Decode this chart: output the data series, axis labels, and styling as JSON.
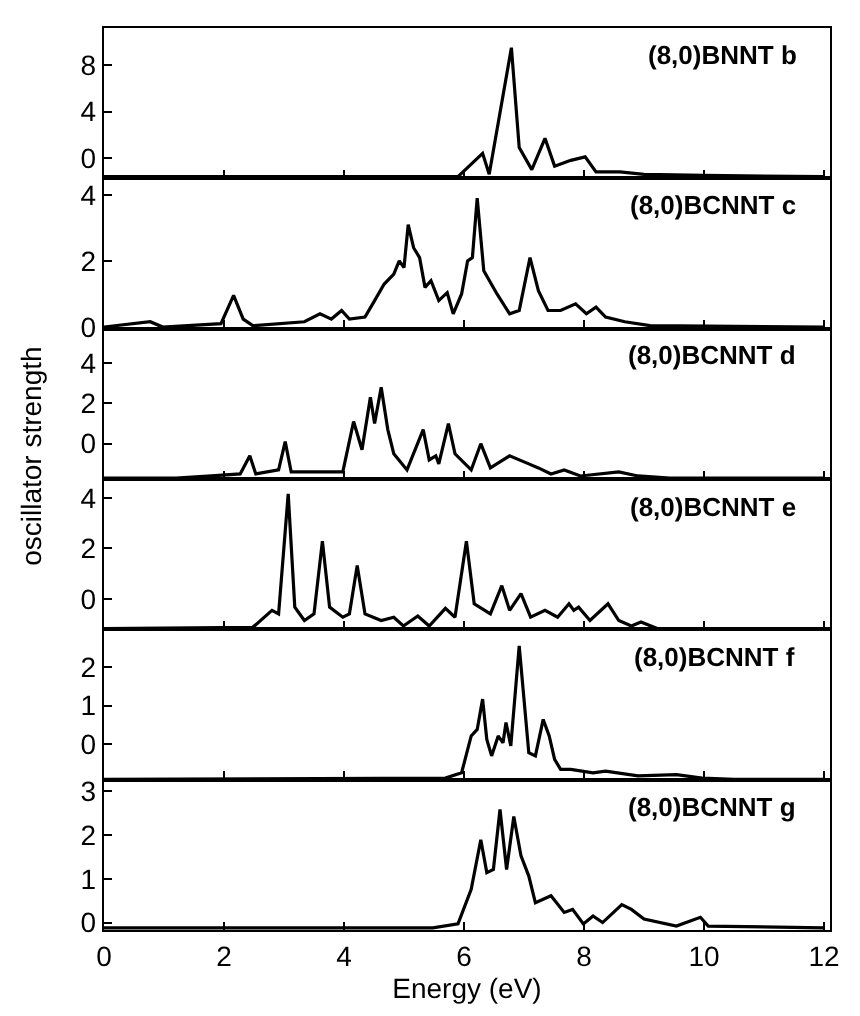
{
  "chart_data": [
    {
      "type": "line",
      "title": "(8,0)BNNT b",
      "tick_labels": "y",
      "grid": false,
      "xlim": [
        0,
        12.1
      ],
      "xticks": [
        0,
        2,
        4,
        6,
        8,
        10,
        12
      ],
      "ylim": [
        -1.75,
        11.2
      ],
      "yticks": [
        0,
        4,
        8
      ],
      "x": [
        0,
        5.9,
        6.31,
        6.42,
        6.79,
        6.92,
        7.13,
        7.35,
        7.51,
        7.78,
        8.02,
        8.2,
        8.6,
        9.0,
        10.0,
        12
      ],
      "series": [
        {
          "color": "#000000",
          "values": [
            -1.6,
            -1.6,
            0.4,
            -1.4,
            9.5,
            0.9,
            -1.0,
            1.7,
            -0.7,
            -0.2,
            0.1,
            -1.2,
            -1.2,
            -1.4,
            -1.5,
            -1.6
          ]
        }
      ]
    },
    {
      "type": "line",
      "title": "(8,0)BCNNT c",
      "tick_labels": "y",
      "grid": false,
      "xlim": [
        0,
        12.1
      ],
      "xticks": [
        0,
        2,
        4,
        6,
        8,
        10,
        12
      ],
      "ylim": [
        -0.05,
        4.5
      ],
      "yticks": [
        0,
        2,
        4
      ],
      "x": [
        0,
        0.77,
        0.98,
        1.95,
        2.16,
        2.32,
        2.48,
        3.34,
        3.6,
        3.79,
        3.96,
        4.09,
        4.35,
        4.51,
        4.67,
        4.83,
        4.92,
        5.0,
        5.07,
        5.16,
        5.26,
        5.35,
        5.45,
        5.58,
        5.72,
        5.82,
        5.96,
        6.06,
        6.14,
        6.22,
        6.33,
        6.55,
        6.76,
        6.92,
        7.1,
        7.24,
        7.4,
        7.61,
        7.86,
        8.04,
        8.2,
        8.36,
        8.68,
        9.1,
        12
      ],
      "series": [
        {
          "color": "#000000",
          "values": [
            0,
            0.16,
            0,
            0.1,
            0.96,
            0.24,
            0.04,
            0.16,
            0.4,
            0.24,
            0.5,
            0.24,
            0.3,
            0.8,
            1.3,
            1.6,
            2.0,
            1.8,
            3.1,
            2.4,
            2.1,
            1.2,
            1.4,
            0.8,
            1.04,
            0.4,
            1.0,
            2.0,
            2.1,
            3.9,
            1.7,
            1.0,
            0.4,
            0.5,
            2.1,
            1.1,
            0.5,
            0.5,
            0.7,
            0.4,
            0.6,
            0.3,
            0.16,
            0.04,
            0
          ]
        }
      ]
    },
    {
      "type": "line",
      "title": "(8,0)BCNNT d",
      "ylabel": "oscillator strength",
      "tick_labels": "y",
      "grid": false,
      "xlim": [
        0,
        12.1
      ],
      "xticks": [
        0,
        2,
        4,
        6,
        8,
        10,
        12
      ],
      "ylim": [
        -1.75,
        5.7
      ],
      "yticks": [
        0,
        2,
        4
      ],
      "x": [
        0,
        1.2,
        1.79,
        2.27,
        2.43,
        2.53,
        2.91,
        3.02,
        3.12,
        3.55,
        3.98,
        4.16,
        4.3,
        4.44,
        4.51,
        4.62,
        4.73,
        4.83,
        5.05,
        5.32,
        5.42,
        5.53,
        5.58,
        5.74,
        5.85,
        6.12,
        6.28,
        6.44,
        6.76,
        7.08,
        7.24,
        7.45,
        7.67,
        7.94,
        8.58,
        8.9,
        9.43,
        12
      ],
      "series": [
        {
          "color": "#000000",
          "values": [
            -1.7,
            -1.7,
            -1.6,
            -1.5,
            -0.6,
            -1.5,
            -1.3,
            0.1,
            -1.4,
            -1.4,
            -1.4,
            1.1,
            -0.3,
            2.3,
            1.0,
            2.8,
            0.7,
            -0.5,
            -1.3,
            0.7,
            -0.8,
            -0.6,
            -1.0,
            1.0,
            -0.5,
            -1.3,
            0,
            -1.2,
            -0.6,
            -1.0,
            -1.2,
            -1.5,
            -1.3,
            -1.6,
            -1.4,
            -1.6,
            -1.7,
            -1.7
          ]
        }
      ]
    },
    {
      "type": "line",
      "title": "(8,0)BCNNT e",
      "tick_labels": "y",
      "grid": false,
      "xlim": [
        0,
        12.1
      ],
      "xticks": [
        0,
        2,
        4,
        6,
        8,
        10,
        12
      ],
      "ylim": [
        -1.2,
        4.75
      ],
      "yticks": [
        0,
        2,
        4
      ],
      "x": [
        0,
        2.48,
        2.8,
        2.91,
        3.07,
        3.18,
        3.34,
        3.5,
        3.64,
        3.76,
        3.98,
        4.09,
        4.22,
        4.35,
        4.62,
        4.83,
        4.99,
        5.23,
        5.42,
        5.69,
        5.85,
        6.04,
        6.17,
        6.44,
        6.63,
        6.76,
        6.95,
        7.11,
        7.35,
        7.56,
        7.75,
        7.83,
        7.91,
        8.1,
        8.4,
        8.58,
        8.79,
        8.95,
        9.22,
        12
      ],
      "series": [
        {
          "color": "#000000",
          "values": [
            -1.17,
            -1.12,
            -0.45,
            -0.59,
            4.16,
            -0.32,
            -0.85,
            -0.59,
            2.29,
            -0.32,
            -0.72,
            -0.59,
            1.33,
            -0.59,
            -0.85,
            -0.72,
            -1.07,
            -0.67,
            -1.07,
            -0.37,
            -0.72,
            2.29,
            -0.19,
            -0.59,
            0.53,
            -0.45,
            0.21,
            -0.72,
            -0.45,
            -0.72,
            -0.19,
            -0.45,
            -0.32,
            -0.85,
            -0.19,
            -0.85,
            -1.07,
            -0.91,
            -1.17,
            -1.17
          ]
        }
      ]
    },
    {
      "type": "line",
      "title": "(8,0)BCNNT f",
      "tick_labels": "y",
      "grid": false,
      "xlim": [
        0,
        12.1
      ],
      "xticks": [
        0,
        2,
        4,
        6,
        8,
        10,
        12
      ],
      "ylim": [
        -0.93,
        2.99
      ],
      "yticks": [
        0,
        1,
        2
      ],
      "x": [
        0,
        5.69,
        5.96,
        6.12,
        6.22,
        6.31,
        6.38,
        6.46,
        6.57,
        6.65,
        6.7,
        6.78,
        6.92,
        7.08,
        7.19,
        7.32,
        7.42,
        7.51,
        7.61,
        7.78,
        8.15,
        8.36,
        8.9,
        9.54,
        9.97,
        10.5,
        12
      ],
      "series": [
        {
          "color": "#000000",
          "values": [
            -0.92,
            -0.89,
            -0.75,
            0.21,
            0.38,
            1.17,
            0.12,
            -0.31,
            0.21,
            0.03,
            0.56,
            -0.05,
            2.56,
            -0.23,
            -0.31,
            0.64,
            0.21,
            -0.4,
            -0.66,
            -0.66,
            -0.75,
            -0.71,
            -0.83,
            -0.8,
            -0.89,
            -0.92,
            -0.92
          ]
        }
      ]
    },
    {
      "type": "line",
      "title": "(8,0)BCNNT g",
      "xlabel": "Energy (eV)",
      "grid": false,
      "xlim": [
        0,
        12.1
      ],
      "xticks": [
        0,
        2,
        4,
        6,
        8,
        10,
        12
      ],
      "ylim": [
        -0.17,
        3.26
      ],
      "yticks": [
        0,
        1,
        2,
        3
      ],
      "x": [
        0,
        5.48,
        5.9,
        6.12,
        6.28,
        6.38,
        6.49,
        6.6,
        6.71,
        6.83,
        6.95,
        7.08,
        7.19,
        7.45,
        7.67,
        7.81,
        7.99,
        8.15,
        8.31,
        8.63,
        8.79,
        9.0,
        9.54,
        9.94,
        10.07,
        12
      ],
      "series": [
        {
          "color": "#000000",
          "values": [
            -0.12,
            -0.12,
            -0.03,
            0.76,
            1.89,
            1.14,
            1.21,
            2.58,
            1.21,
            2.42,
            1.52,
            1.06,
            0.45,
            0.61,
            0.23,
            0.3,
            -0.03,
            0.15,
            0,
            0.41,
            0.3,
            0.08,
            -0.08,
            0.12,
            -0.08,
            -0.12
          ]
        }
      ]
    }
  ]
}
